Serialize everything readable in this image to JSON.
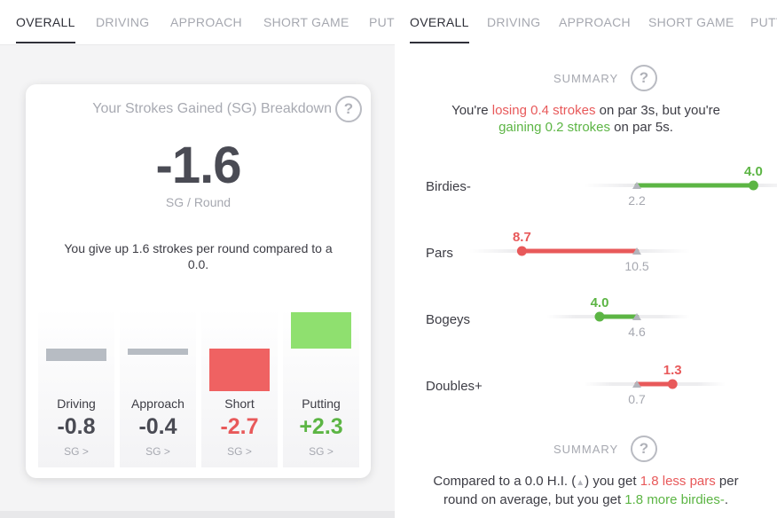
{
  "left_panel": {
    "tabs": [
      {
        "label": "OVERALL",
        "active": true
      },
      {
        "label": "DRIVING",
        "active": false
      },
      {
        "label": "APPROACH",
        "active": false
      },
      {
        "label": "SHORT GAME",
        "active": false
      },
      {
        "label": "PUT",
        "active": false
      }
    ],
    "card": {
      "title": "Your Strokes Gained (SG) Breakdown",
      "help": "?",
      "sg_value": "-1.6",
      "sg_label": "SG / Round",
      "description": "You give up 1.6 strokes per round compared to a 0.0.",
      "categories": [
        {
          "name": "Driving",
          "value": "-0.8",
          "link": "SG >",
          "color": "#b7bcc3"
        },
        {
          "name": "Approach",
          "value": "-0.4",
          "link": "SG >",
          "color": "#b7bcc3"
        },
        {
          "name": "Short",
          "value": "-2.7",
          "link": "SG >",
          "color": "#ef6262"
        },
        {
          "name": "Putting",
          "value": "+2.3",
          "link": "SG >",
          "color": "#8fe06f"
        }
      ]
    }
  },
  "right_panel": {
    "tabs": [
      {
        "label": "OVERALL",
        "active": true
      },
      {
        "label": "DRIVING",
        "active": false
      },
      {
        "label": "APPROACH",
        "active": false
      },
      {
        "label": "SHORT GAME",
        "active": false
      },
      {
        "label": "PUTT",
        "active": false
      }
    ],
    "summary_top": {
      "label": "SUMMARY",
      "help": "?",
      "line1_pre": "You're ",
      "line1_highlight": "losing 0.4 strokes",
      "line1_post": " on par 3s, but you're",
      "line2_highlight": "gaining 0.2 strokes",
      "line2_post": " on par 5s."
    },
    "comparison_rows": [
      {
        "label": "Birdies-",
        "you": 4.0,
        "you_label": "4.0",
        "benchmark": 2.2,
        "benchmark_label": "2.2",
        "status": "good"
      },
      {
        "label": "Pars",
        "you": 8.7,
        "you_label": "8.7",
        "benchmark": 10.5,
        "benchmark_label": "10.5",
        "status": "bad"
      },
      {
        "label": "Bogeys",
        "you": 4.0,
        "you_label": "4.0",
        "benchmark": 4.6,
        "benchmark_label": "4.6",
        "status": "good"
      },
      {
        "label": "Doubles+",
        "you": 1.3,
        "you_label": "1.3",
        "benchmark": 0.7,
        "benchmark_label": "0.7",
        "status": "bad"
      }
    ],
    "summary_bottom": {
      "label": "SUMMARY",
      "help": "?",
      "line1_pre": "Compared to a 0.0 H.I. (",
      "line1_mid": ") you get ",
      "line1_highlight": "1.8 less pars",
      "line1_post": " per",
      "line2_pre": "round on average, but you get ",
      "line2_highlight": "1.8 more birdies-",
      "line2_post": "."
    }
  },
  "colors": {
    "red": "#e8595a",
    "green": "#5cb544",
    "track": "#ededef",
    "marker": "#b3b5bc"
  }
}
